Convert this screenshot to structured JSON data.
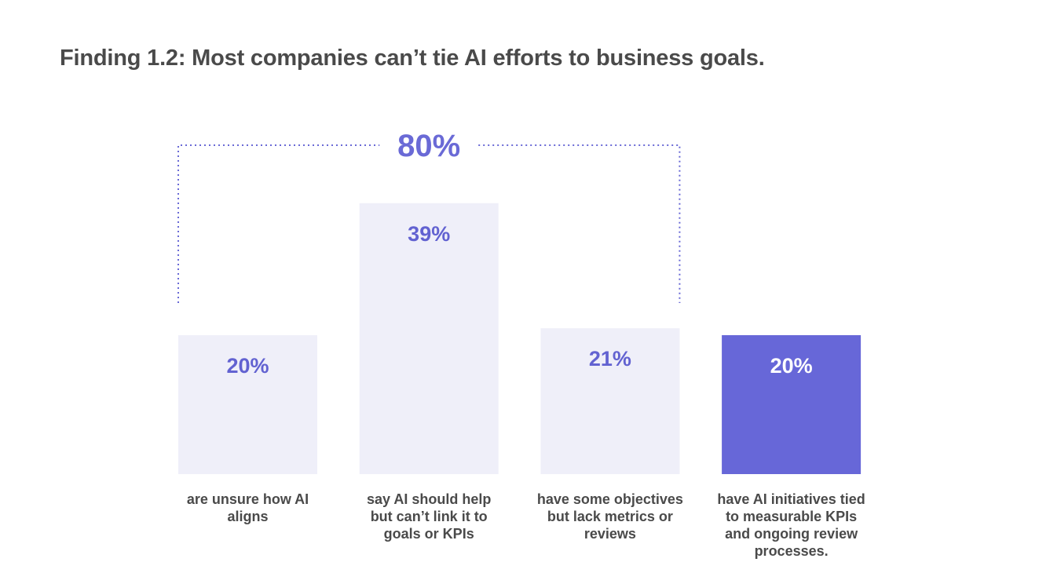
{
  "title": "Finding 1.2: Most companies can’t tie AI efforts to business goals.",
  "chart_data": {
    "type": "bar",
    "title": "Finding 1.2: Most companies can’t tie AI efforts to business goals.",
    "xlabel": "",
    "ylabel": "",
    "ylim": [
      0,
      45
    ],
    "grid": false,
    "categories": [
      "are unsure how AI aligns",
      "say AI should help but can’t link it to goals or KPIs",
      "have some objectives but lack metrics or reviews",
      "have AI initiatives tied to measurable KPIs and ongoing review processes."
    ],
    "values": [
      20,
      39,
      21,
      20
    ],
    "value_labels": [
      "20%",
      "39%",
      "21%",
      "20%"
    ],
    "highlighted_index": 3,
    "bracket": {
      "label": "80%",
      "span": [
        0,
        2
      ]
    },
    "colors": {
      "bar": "#efeff9",
      "bar_highlight": "#6767d8",
      "value_text": "#6262d1",
      "value_text_highlight": "#ffffff",
      "bracket": "#6a6ad6"
    }
  }
}
